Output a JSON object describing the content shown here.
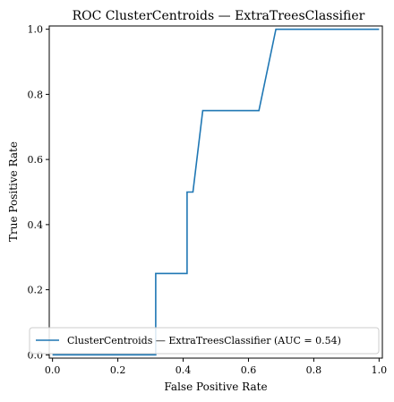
{
  "chart_data": {
    "type": "line",
    "title": "ROC ClusterCentroids — ExtraTreesClassifier",
    "xlabel": "False Positive Rate",
    "ylabel": "True Positive Rate",
    "xlim": [
      -0.01,
      1.01
    ],
    "ylim": [
      -0.01,
      1.01
    ],
    "xticks": [
      0.0,
      0.2,
      0.4,
      0.6,
      0.8,
      1.0
    ],
    "xtick_labels": [
      "0.0",
      "0.2",
      "0.4",
      "0.6",
      "0.8",
      "1.0"
    ],
    "yticks": [
      0.0,
      0.2,
      0.4,
      0.6,
      0.8,
      1.0
    ],
    "ytick_labels": [
      "0.0",
      "0.2",
      "0.4",
      "0.6",
      "0.8",
      "1.0"
    ],
    "grid": false,
    "legend_position": "lower-right",
    "series": [
      {
        "name": "ClusterCentroids — ExtraTreesClassifier (AUC = 0.54)",
        "color": "#1f77b4",
        "x": [
          0.0,
          0.316,
          0.316,
          0.412,
          0.412,
          0.43,
          0.46,
          0.46,
          0.632,
          0.684,
          0.684,
          1.0
        ],
        "y": [
          0.0,
          0.0,
          0.25,
          0.25,
          0.5,
          0.5,
          0.75,
          0.75,
          0.75,
          1.0,
          1.0,
          1.0
        ]
      }
    ]
  }
}
